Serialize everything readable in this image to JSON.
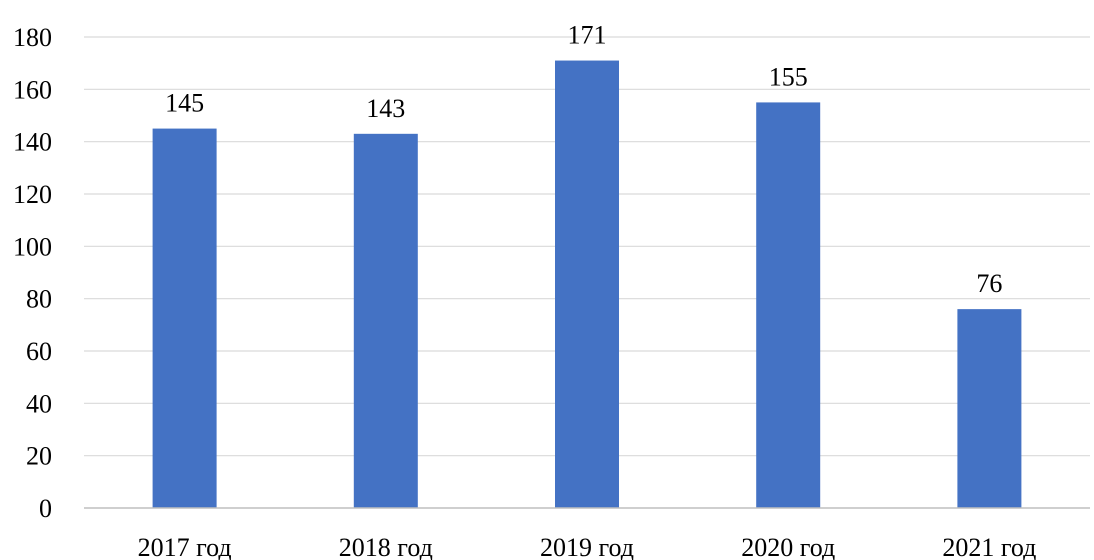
{
  "chart_data": {
    "type": "bar",
    "title": "",
    "xlabel": "",
    "ylabel": "",
    "categories": [
      "2017 год",
      "2018 год",
      "2019 год",
      "2020 год",
      "2021 год"
    ],
    "values": [
      145,
      143,
      171,
      155,
      76
    ],
    "ylim": [
      0,
      180
    ],
    "yticks": [
      0,
      20,
      40,
      60,
      80,
      100,
      120,
      140,
      160,
      180
    ],
    "grid": true,
    "legend": "none",
    "bar_color": "#4472c4"
  }
}
